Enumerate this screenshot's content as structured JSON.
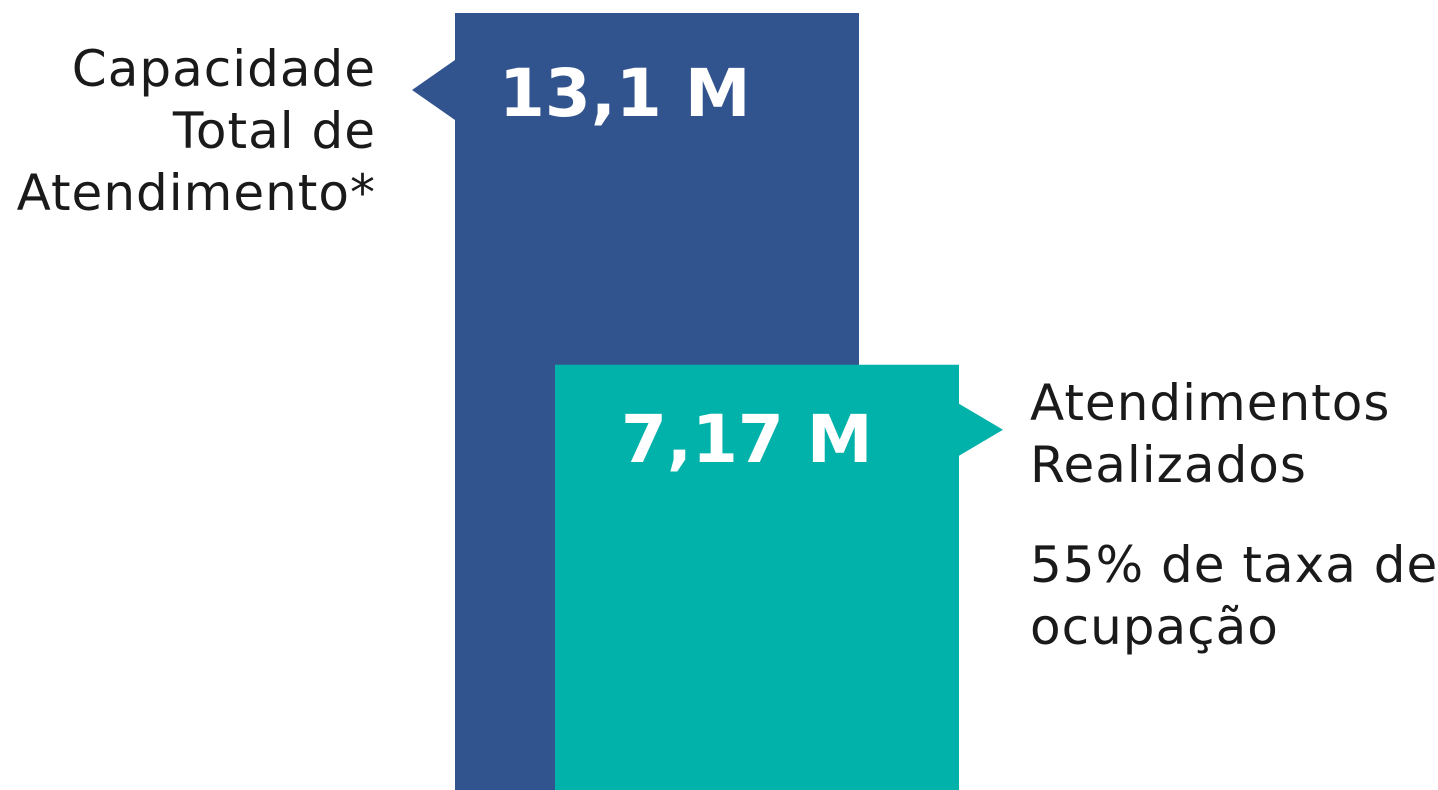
{
  "chart_data": {
    "type": "bar",
    "categories": [
      "Capacidade Total de Atendimento*",
      "Atendimentos Realizados"
    ],
    "values": [
      13.1,
      7.17
    ],
    "unit": "M",
    "value_labels": [
      "13,1 M",
      "7,17 M"
    ],
    "annotation": [
      "55% de taxa de",
      "ocupação"
    ],
    "colors": [
      "#32548e",
      "#00b2aa"
    ]
  },
  "left_label_lines": [
    "Capacidade",
    "Total de",
    "Atendimento*"
  ],
  "right_label_lines": [
    "Atendimentos",
    "Realizados"
  ]
}
